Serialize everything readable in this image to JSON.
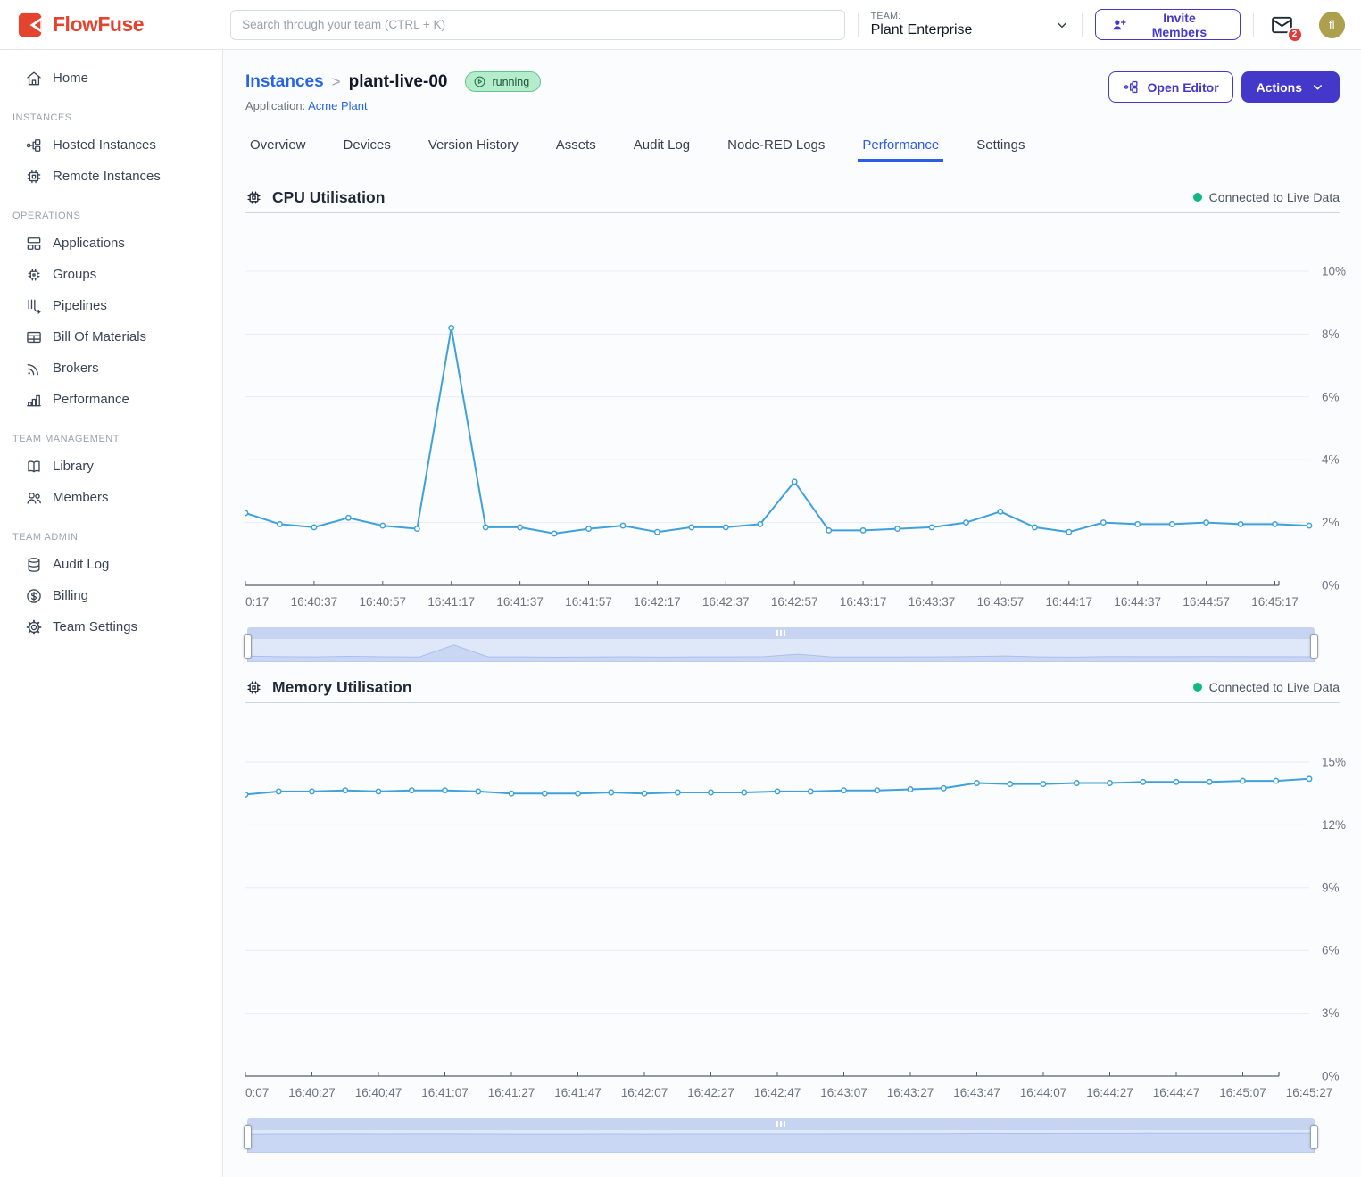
{
  "header": {
    "brand": "FlowFuse",
    "search_placeholder": "Search through your team (CTRL + K)",
    "team_label": "TEAM:",
    "team_name": "Plant Enterprise",
    "invite_button": "Invite Members",
    "notification_count": "2",
    "avatar_initials": "fl"
  },
  "sidebar": {
    "sections": [
      {
        "label": "",
        "items": [
          {
            "label": "Home",
            "icon": "home-icon"
          }
        ]
      },
      {
        "label": "INSTANCES",
        "items": [
          {
            "label": "Hosted Instances",
            "icon": "hosted-instances-icon"
          },
          {
            "label": "Remote Instances",
            "icon": "remote-instances-icon"
          }
        ]
      },
      {
        "label": "OPERATIONS",
        "items": [
          {
            "label": "Applications",
            "icon": "applications-icon"
          },
          {
            "label": "Groups",
            "icon": "groups-icon"
          },
          {
            "label": "Pipelines",
            "icon": "pipelines-icon"
          },
          {
            "label": "Bill Of Materials",
            "icon": "bill-of-materials-icon"
          },
          {
            "label": "Brokers",
            "icon": "brokers-icon"
          },
          {
            "label": "Performance",
            "icon": "performance-icon"
          }
        ]
      },
      {
        "label": "TEAM MANAGEMENT",
        "items": [
          {
            "label": "Library",
            "icon": "library-icon"
          },
          {
            "label": "Members",
            "icon": "members-icon"
          }
        ]
      },
      {
        "label": "TEAM ADMIN",
        "items": [
          {
            "label": "Audit Log",
            "icon": "audit-log-icon"
          },
          {
            "label": "Billing",
            "icon": "billing-icon"
          },
          {
            "label": "Team Settings",
            "icon": "team-settings-icon"
          }
        ]
      }
    ]
  },
  "page": {
    "breadcrumb_root": "Instances",
    "breadcrumb_sep": ">",
    "instance_name": "plant-live-00",
    "status_badge": "running",
    "application_label": "Application:",
    "application_name": "Acme Plant",
    "open_editor_button": "Open Editor",
    "actions_button": "Actions",
    "tabs": [
      "Overview",
      "Devices",
      "Version History",
      "Assets",
      "Audit Log",
      "Node-RED Logs",
      "Performance",
      "Settings"
    ],
    "active_tab": "Performance"
  },
  "colors": {
    "brand_red": "#e4432f",
    "accent_indigo": "#4338ca",
    "link_blue": "#2563eb",
    "active_tab_blue": "#2d5ce6",
    "chart_line_blue": "#3ea1dc",
    "live_green": "#10b981",
    "notification_red": "#df3b3b",
    "avatar_olive": "#aca04f"
  },
  "icons": [
    "flowfuse-logo",
    "chevron-down-icon",
    "user-plus-icon",
    "mail-icon",
    "chip-icon",
    "play-circle-icon",
    "node-tree-icon"
  ],
  "chart_data": [
    {
      "type": "line",
      "title": "CPU Utilisation",
      "status": "Connected to Live Data",
      "ylabel": "%",
      "ylim": [
        0,
        10
      ],
      "yticks": [
        0,
        2,
        4,
        6,
        8,
        10
      ],
      "grid": true,
      "x": [
        "16:40:17",
        "16:40:27",
        "16:40:37",
        "16:40:47",
        "16:40:57",
        "16:41:07",
        "16:41:17",
        "16:41:27",
        "16:41:37",
        "16:41:47",
        "16:41:57",
        "16:42:07",
        "16:42:17",
        "16:42:27",
        "16:42:37",
        "16:42:47",
        "16:42:57",
        "16:43:07",
        "16:43:17",
        "16:43:27",
        "16:43:37",
        "16:43:47",
        "16:43:57",
        "16:44:07",
        "16:44:17",
        "16:44:27",
        "16:44:37",
        "16:44:47",
        "16:44:57",
        "16:45:07",
        "16:45:17",
        "16:45:27"
      ],
      "x_tick_labels": [
        "0:17",
        "16:40:37",
        "16:40:57",
        "16:41:17",
        "16:41:37",
        "16:41:57",
        "16:42:17",
        "16:42:37",
        "16:42:57",
        "16:43:17",
        "16:43:37",
        "16:43:57",
        "16:44:17",
        "16:44:37",
        "16:44:57",
        "16:45:17"
      ],
      "values": [
        2.3,
        1.95,
        1.85,
        2.15,
        1.9,
        1.8,
        8.2,
        1.85,
        1.85,
        1.65,
        1.8,
        1.9,
        1.7,
        1.85,
        1.85,
        1.95,
        3.3,
        1.75,
        1.75,
        1.8,
        1.85,
        2.0,
        2.35,
        1.85,
        1.7,
        2.0,
        1.95,
        1.95,
        2.0,
        1.95,
        1.95,
        1.9
      ]
    },
    {
      "type": "line",
      "title": "Memory Utilisation",
      "status": "Connected to Live Data",
      "ylabel": "%",
      "ylim": [
        0,
        15
      ],
      "yticks": [
        0,
        3,
        6,
        9,
        12,
        15
      ],
      "grid": true,
      "x": [
        "16:40:07",
        "16:40:17",
        "16:40:27",
        "16:40:37",
        "16:40:47",
        "16:40:57",
        "16:41:07",
        "16:41:17",
        "16:41:27",
        "16:41:37",
        "16:41:47",
        "16:41:57",
        "16:42:07",
        "16:42:17",
        "16:42:27",
        "16:42:37",
        "16:42:47",
        "16:42:57",
        "16:43:07",
        "16:43:17",
        "16:43:27",
        "16:43:37",
        "16:43:47",
        "16:43:57",
        "16:44:07",
        "16:44:17",
        "16:44:27",
        "16:44:37",
        "16:44:47",
        "16:44:57",
        "16:45:07",
        "16:45:17",
        "16:45:27"
      ],
      "x_tick_labels": [
        "0:07",
        "16:40:27",
        "16:40:47",
        "16:41:07",
        "16:41:27",
        "16:41:47",
        "16:42:07",
        "16:42:27",
        "16:42:47",
        "16:43:07",
        "16:43:27",
        "16:43:47",
        "16:44:07",
        "16:44:27",
        "16:44:47",
        "16:45:07",
        "16:45:27"
      ],
      "values": [
        13.45,
        13.6,
        13.6,
        13.65,
        13.6,
        13.65,
        13.65,
        13.6,
        13.5,
        13.5,
        13.5,
        13.55,
        13.5,
        13.55,
        13.55,
        13.55,
        13.6,
        13.6,
        13.65,
        13.65,
        13.7,
        13.75,
        14.0,
        13.95,
        13.95,
        14.0,
        14.0,
        14.05,
        14.05,
        14.05,
        14.1,
        14.1,
        14.2
      ]
    }
  ]
}
